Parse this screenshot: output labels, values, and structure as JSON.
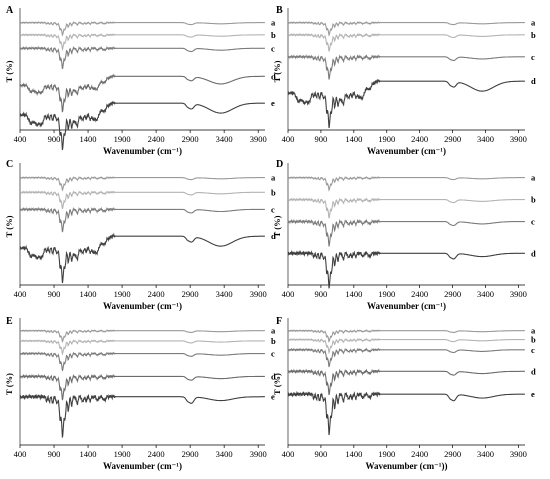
{
  "chart_data": [
    {
      "type": "line",
      "panel_label": "A",
      "xlabel": "Wavenumber (cm⁻¹)",
      "ylabel": "T (%)",
      "xlim": [
        400,
        4000
      ],
      "x_ticks": [
        "400",
        "900",
        "1400",
        "1900",
        "2400",
        "2900",
        "3400",
        "3900"
      ],
      "series": [
        {
          "name": "a",
          "offset": 0.12,
          "scale": 0.6,
          "color": "#9a9a9a",
          "profile": "flat"
        },
        {
          "name": "b",
          "offset": 0.22,
          "scale": 0.7,
          "color": "#b4b4b4",
          "profile": "flat"
        },
        {
          "name": "c",
          "offset": 0.33,
          "scale": 1.0,
          "color": "#7c7c7c",
          "profile": "flat"
        },
        {
          "name": "d",
          "offset": 0.56,
          "scale": 1.3,
          "color": "#6c6c6c",
          "profile": "broad"
        },
        {
          "name": "e",
          "offset": 0.78,
          "scale": 1.7,
          "color": "#404040",
          "profile": "deep"
        }
      ]
    },
    {
      "type": "line",
      "panel_label": "B",
      "xlabel": "Wavenumber (cm⁻¹)",
      "ylabel": "T (%)",
      "xlim": [
        400,
        4000
      ],
      "x_ticks": [
        "400",
        "900",
        "1400",
        "1900",
        "2400",
        "2900",
        "3400",
        "3900"
      ],
      "series": [
        {
          "name": "a",
          "offset": 0.12,
          "scale": 0.6,
          "color": "#9a9a9a",
          "profile": "flat"
        },
        {
          "name": "b",
          "offset": 0.22,
          "scale": 0.8,
          "color": "#b4b4b4",
          "profile": "flat"
        },
        {
          "name": "c",
          "offset": 0.4,
          "scale": 1.1,
          "color": "#7c7c7c",
          "profile": "flat"
        },
        {
          "name": "d",
          "offset": 0.6,
          "scale": 1.7,
          "color": "#404040",
          "profile": "broad"
        }
      ]
    },
    {
      "type": "line",
      "panel_label": "C",
      "xlabel": "Wavenumber (cm⁻¹)",
      "ylabel": "T (%)",
      "xlim": [
        400,
        4000
      ],
      "x_ticks": [
        "400",
        "900",
        "1400",
        "1900",
        "2400",
        "2900",
        "3400",
        "3900"
      ],
      "series": [
        {
          "name": "a",
          "offset": 0.12,
          "scale": 0.6,
          "color": "#9a9a9a",
          "profile": "flat"
        },
        {
          "name": "b",
          "offset": 0.24,
          "scale": 0.8,
          "color": "#b4b4b4",
          "profile": "flat"
        },
        {
          "name": "c",
          "offset": 0.38,
          "scale": 1.1,
          "color": "#7c7c7c",
          "profile": "flat"
        },
        {
          "name": "d",
          "offset": 0.6,
          "scale": 1.7,
          "color": "#404040",
          "profile": "broad"
        }
      ]
    },
    {
      "type": "line",
      "panel_label": "D",
      "xlabel": "Wavenumber (cm⁻¹)",
      "ylabel": "T (%)",
      "xlim": [
        400,
        4000
      ],
      "x_ticks": [
        "400",
        "900",
        "1400",
        "1900",
        "2400",
        "2900",
        "3400",
        "3900"
      ],
      "series": [
        {
          "name": "a",
          "offset": 0.12,
          "scale": 0.6,
          "color": "#9a9a9a",
          "profile": "flat"
        },
        {
          "name": "b",
          "offset": 0.3,
          "scale": 0.9,
          "color": "#b4b4b4",
          "profile": "flat"
        },
        {
          "name": "c",
          "offset": 0.48,
          "scale": 1.2,
          "color": "#7c7c7c",
          "profile": "flat"
        },
        {
          "name": "d",
          "offset": 0.74,
          "scale": 1.7,
          "color": "#404040",
          "profile": "flat"
        }
      ]
    },
    {
      "type": "line",
      "panel_label": "E",
      "xlabel": "Wavenumber (cm⁻¹)",
      "ylabel": "T (%)",
      "xlim": [
        400,
        4000
      ],
      "x_ticks": [
        "400",
        "900",
        "1400",
        "1900",
        "2400",
        "2900",
        "3400",
        "3900"
      ],
      "series": [
        {
          "name": "a",
          "offset": 0.1,
          "scale": 0.5,
          "color": "#9a9a9a",
          "profile": "flat"
        },
        {
          "name": "b",
          "offset": 0.18,
          "scale": 0.6,
          "color": "#b4b4b4",
          "profile": "flat"
        },
        {
          "name": "c",
          "offset": 0.28,
          "scale": 0.8,
          "color": "#7c7c7c",
          "profile": "flat"
        },
        {
          "name": "d",
          "offset": 0.46,
          "scale": 1.1,
          "color": "#6c6c6c",
          "profile": "flat"
        },
        {
          "name": "e",
          "offset": 0.62,
          "scale": 1.9,
          "color": "#404040",
          "profile": "flat"
        }
      ]
    },
    {
      "type": "line",
      "panel_label": "F",
      "xlabel": "Wavenumber (cm⁻¹))",
      "ylabel": "T (%)",
      "xlim": [
        400,
        4000
      ],
      "x_ticks": [
        "400",
        "900",
        "1400",
        "1900",
        "2400",
        "2900",
        "3400",
        "3900"
      ],
      "series": [
        {
          "name": "a",
          "offset": 0.1,
          "scale": 0.5,
          "color": "#9a9a9a",
          "profile": "flat"
        },
        {
          "name": "b",
          "offset": 0.17,
          "scale": 0.6,
          "color": "#b4b4b4",
          "profile": "flat"
        },
        {
          "name": "c",
          "offset": 0.25,
          "scale": 0.8,
          "color": "#7c7c7c",
          "profile": "flat"
        },
        {
          "name": "d",
          "offset": 0.42,
          "scale": 1.1,
          "color": "#6c6c6c",
          "profile": "flat"
        },
        {
          "name": "e",
          "offset": 0.6,
          "scale": 1.9,
          "color": "#404040",
          "profile": "flat"
        }
      ]
    }
  ]
}
